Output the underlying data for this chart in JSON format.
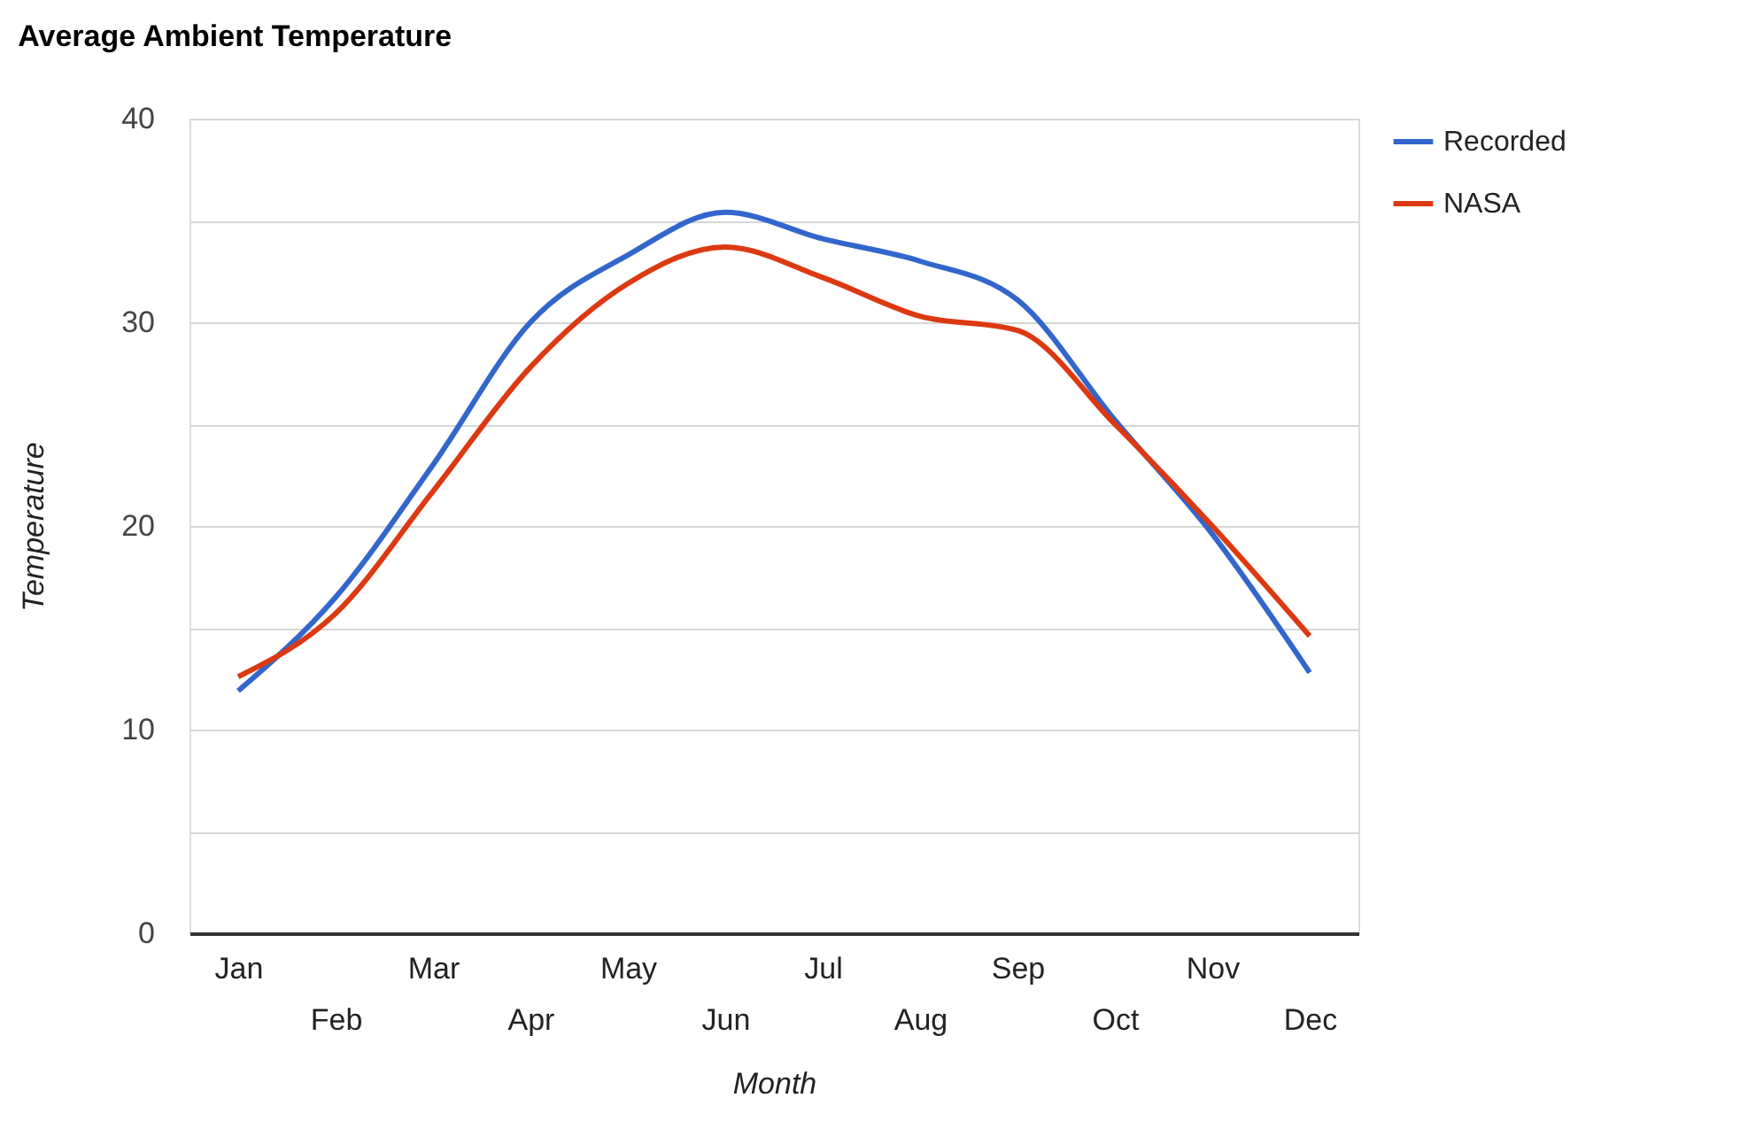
{
  "chart_data": {
    "type": "line",
    "title": "Average Ambient Temperature",
    "xlabel": "Month",
    "ylabel": "Temperature",
    "categories": [
      "Jan",
      "Feb",
      "Mar",
      "Apr",
      "May",
      "Jun",
      "Jul",
      "Aug",
      "Sep",
      "Oct",
      "Nov",
      "Dec"
    ],
    "series": [
      {
        "name": "Recorded",
        "color": "#3366cc",
        "values": [
          11.9,
          16.5,
          23.0,
          30.0,
          33.3,
          35.4,
          34.1,
          33.0,
          31.1,
          25.2,
          19.6,
          12.8
        ]
      },
      {
        "name": "NASA",
        "color": "#dc3912",
        "values": [
          12.6,
          15.7,
          21.7,
          27.8,
          31.9,
          33.7,
          32.2,
          30.3,
          29.6,
          25.0,
          20.0,
          14.6
        ]
      }
    ],
    "ylim": [
      0,
      40
    ],
    "yticks": [
      0,
      {
        "value": 5,
        "label": null
      },
      10,
      {
        "value": 15,
        "label": null
      },
      20,
      {
        "value": 25,
        "label": null
      },
      30,
      {
        "value": 35,
        "label": null
      },
      40
    ],
    "grid": "y",
    "legend": "top right",
    "marker": "none",
    "line_style": "solid"
  }
}
